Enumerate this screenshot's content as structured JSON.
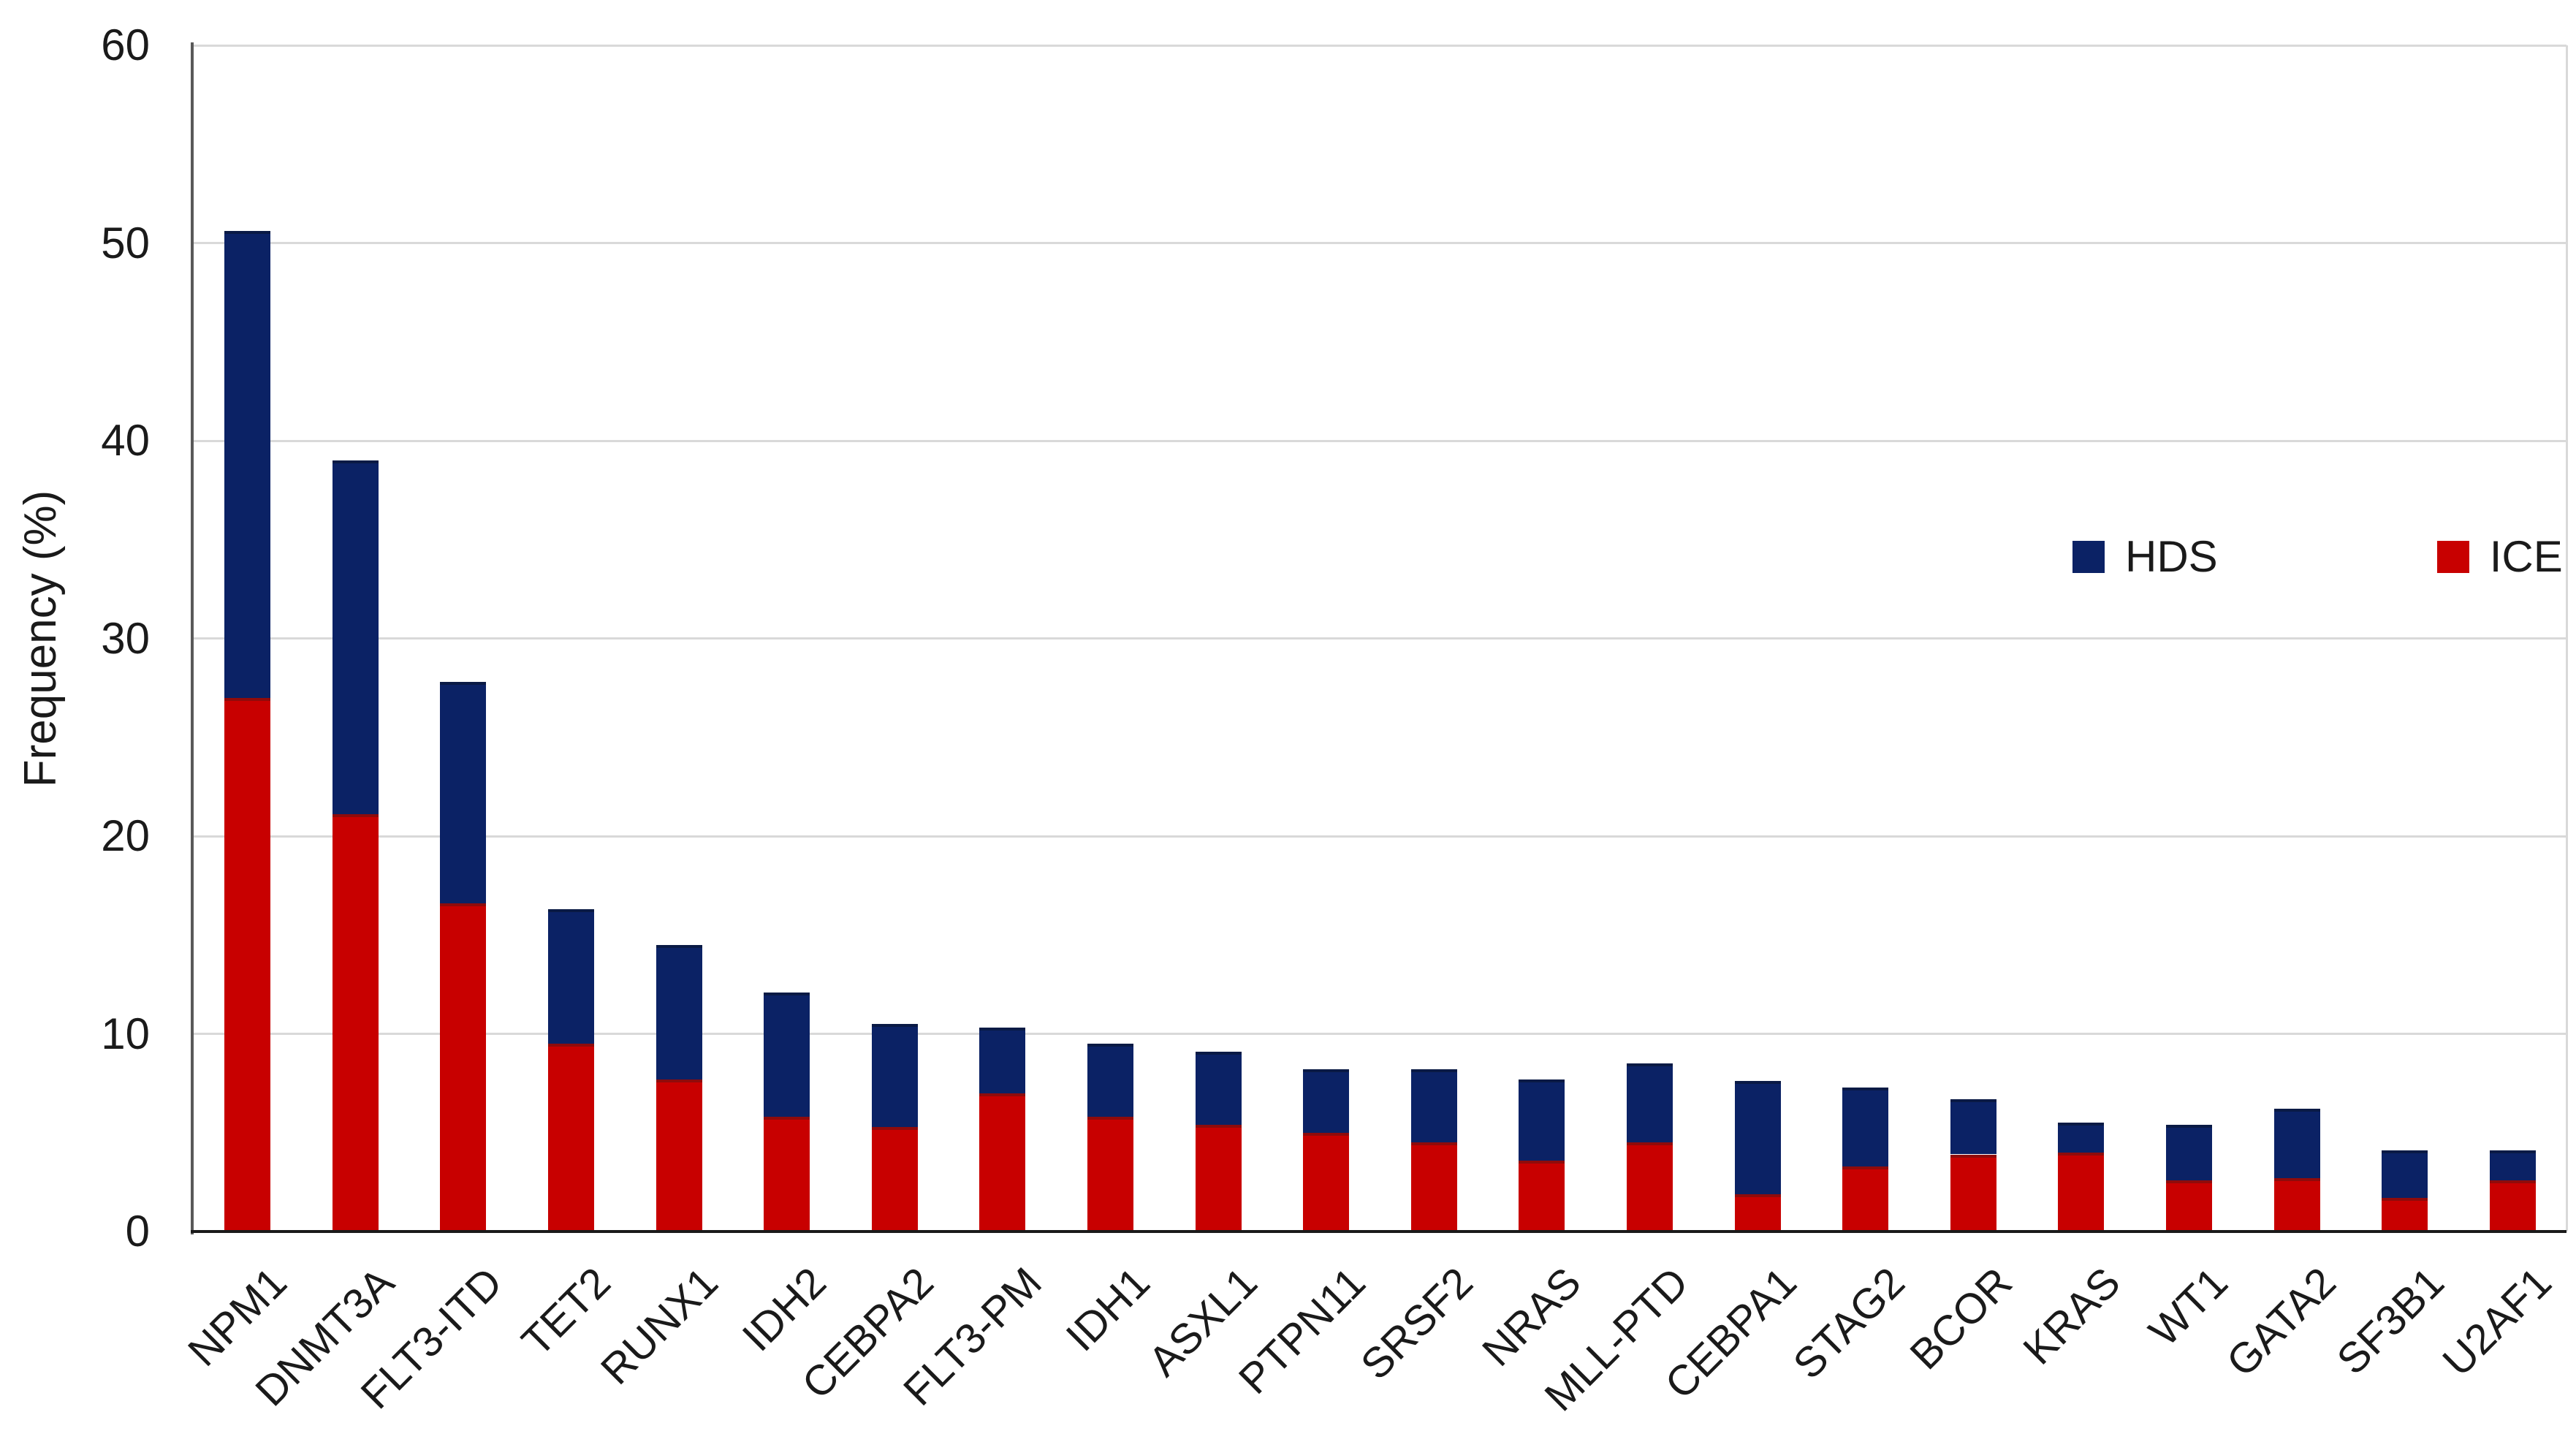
{
  "chart_data": {
    "type": "bar",
    "stacked": true,
    "title": "",
    "xlabel": "",
    "ylabel": "Frequency (%)",
    "ylim": [
      0,
      60
    ],
    "yticks": [
      0,
      10,
      20,
      30,
      40,
      50,
      60
    ],
    "grid": true,
    "legend_position": "inside upper-right",
    "categories": [
      "NPM1",
      "DNMT3A",
      "FLT3-ITD",
      "TET2",
      "RUNX1",
      "IDH2",
      "CEBPA2",
      "FLT3-PM",
      "IDH1",
      "ASXL1",
      "PTPN11",
      "SRSF2",
      "NRAS",
      "MLL-PTD",
      "CEBPA1",
      "STAG2",
      "BCOR",
      "KRAS",
      "WT1",
      "GATA2",
      "SF3B1",
      "U2AF1"
    ],
    "series": [
      {
        "name": "ICE",
        "stack_order": "bottom",
        "color": "#c80000",
        "edge_color": "#8f0b0b",
        "values": [
          27.0,
          21.1,
          16.6,
          9.5,
          7.7,
          5.8,
          5.3,
          7.0,
          5.8,
          5.4,
          5.0,
          4.5,
          3.6,
          4.5,
          1.9,
          3.3,
          3.9,
          4.0,
          2.6,
          2.7,
          1.7,
          2.6
        ]
      },
      {
        "name": "HDS",
        "stack_order": "top",
        "color": "#0b2265",
        "edge_color": "#0a1a45",
        "values": [
          23.6,
          17.9,
          11.2,
          6.8,
          6.8,
          6.3,
          5.2,
          3.3,
          3.7,
          3.7,
          3.2,
          3.7,
          4.1,
          4.0,
          5.7,
          4.0,
          2.8,
          1.5,
          2.8,
          3.5,
          2.4,
          1.5
        ]
      }
    ],
    "totals": [
      50.6,
      39.0,
      27.8,
      16.3,
      14.5,
      12.1,
      10.5,
      10.3,
      9.5,
      9.1,
      8.2,
      8.2,
      7.7,
      8.5,
      7.6,
      7.3,
      6.7,
      5.5,
      5.4,
      6.2,
      4.1,
      4.1
    ]
  },
  "legend": {
    "items": [
      {
        "label": "HDS",
        "color": "#0b2265"
      },
      {
        "label": "ICE",
        "color": "#c80000"
      }
    ]
  },
  "colors": {
    "background": "#ffffff",
    "gridline": "#d9d9d9",
    "y_axis_line": "#595959",
    "x_axis_line": "#1a1a1a",
    "text": "#1a1a1a"
  }
}
